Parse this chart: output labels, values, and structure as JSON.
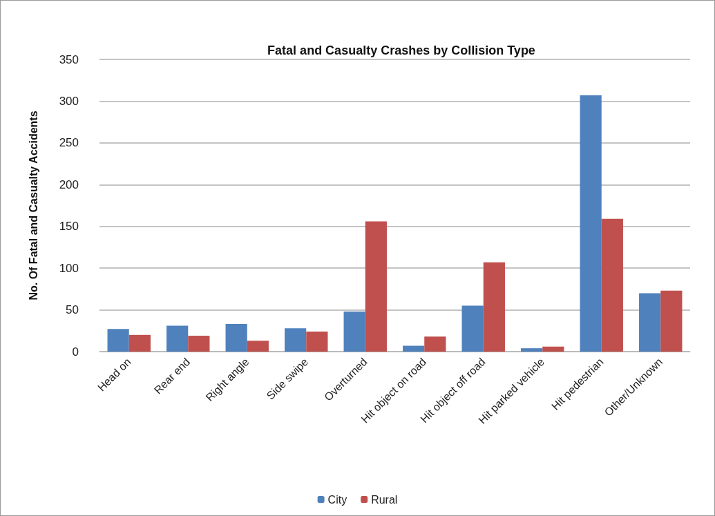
{
  "chart_data": {
    "type": "bar",
    "title": "Fatal and Casualty Crashes by Collision Type",
    "ylabel": "No. Of Fatal and Casualty Accidents",
    "categories": [
      "Head on",
      "Rear end",
      "Right angle",
      "Side swipe",
      "Overturned",
      "Hit object on road",
      "Hit object off road",
      "Hit parked vehicle",
      "Hit pedestrian",
      "Other/Unknown"
    ],
    "series": [
      {
        "name": "City",
        "color": "#4f81bd",
        "values": [
          27,
          31,
          33,
          28,
          48,
          7,
          55,
          4,
          307,
          70
        ]
      },
      {
        "name": "Rural",
        "color": "#c0504d",
        "values": [
          20,
          19,
          13,
          24,
          156,
          18,
          107,
          6,
          159,
          73
        ]
      }
    ],
    "ylim": [
      0,
      350
    ],
    "yticks": [
      0,
      50,
      100,
      150,
      200,
      250,
      300,
      350
    ],
    "grid": "y",
    "legend": "bottom"
  }
}
